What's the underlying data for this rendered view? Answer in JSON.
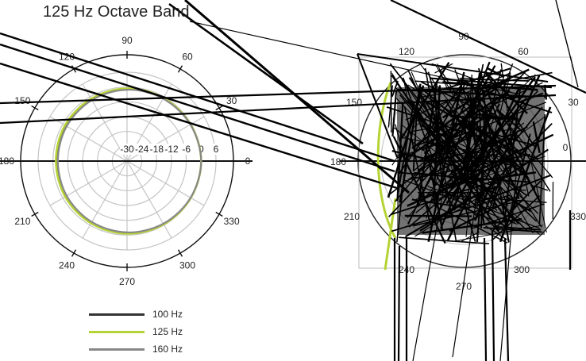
{
  "title": "125 Hz Octave Band",
  "chart_data": {
    "type": "polar",
    "title": "125 Hz Octave Band",
    "radial_ticks": [
      "-30",
      "-24",
      "-18",
      "-12",
      "-6",
      "0",
      "6"
    ],
    "radial_range_db": [
      -30,
      6
    ],
    "angle_ticks_deg": [
      0,
      30,
      60,
      90,
      120,
      150,
      180,
      210,
      240,
      270,
      300,
      330
    ],
    "angle_labels": [
      "0",
      "30",
      "60",
      "90",
      "120",
      "150",
      "180",
      "210",
      "240",
      "270",
      "300",
      "330"
    ],
    "grid": true,
    "legend_position": "bottom-left",
    "series": [
      {
        "name": "100 Hz",
        "color": "#333333",
        "angles_deg": [
          0,
          30,
          60,
          90,
          120,
          150,
          180,
          210,
          240,
          270,
          300,
          330
        ],
        "values_db": [
          0,
          -0.3,
          -0.6,
          -0.8,
          -1.2,
          -1.4,
          -1.6,
          -1.4,
          -1.2,
          -0.8,
          -0.5,
          -0.2
        ]
      },
      {
        "name": "125 Hz",
        "color": "#b5d334",
        "angles_deg": [
          0,
          30,
          60,
          90,
          120,
          150,
          180,
          210,
          240,
          270,
          300,
          330
        ],
        "values_db": [
          0,
          -0.3,
          -0.5,
          -0.6,
          -0.9,
          -1.0,
          -1.2,
          -1.1,
          -0.9,
          -0.6,
          -0.4,
          -0.2
        ]
      },
      {
        "name": "160 Hz",
        "color": "#888888",
        "angles_deg": [
          0,
          30,
          60,
          90,
          120,
          150,
          180,
          210,
          240,
          270,
          300,
          330
        ],
        "values_db": [
          0,
          -0.4,
          -0.8,
          -1.1,
          -1.5,
          -1.8,
          -2.0,
          -1.8,
          -1.5,
          -1.1,
          -0.7,
          -0.3
        ]
      }
    ]
  }
}
